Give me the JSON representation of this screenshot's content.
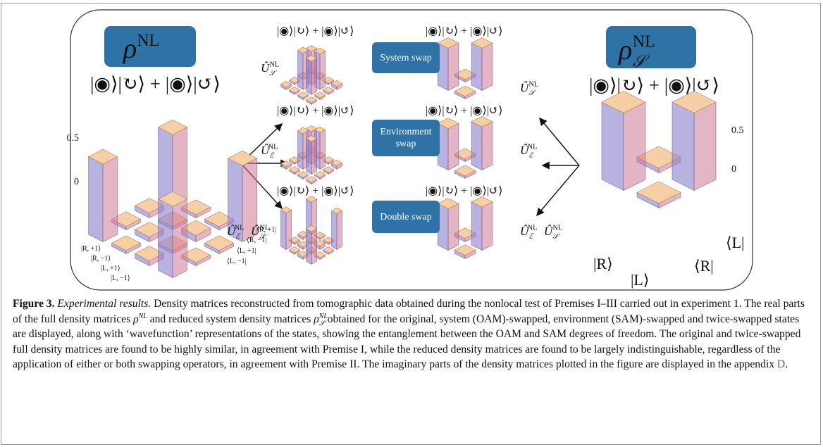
{
  "figure": {
    "main": {
      "symbol": {
        "base": "ρ",
        "sup": "NL"
      },
      "wavefunction": "|◉⟩|↻⟩ + |◉⟩|↺⟩",
      "matrix": [
        [
          0.48,
          0.02,
          0.03,
          0.44
        ],
        [
          0.02,
          0.03,
          0.02,
          0.02
        ],
        [
          0.03,
          0.02,
          0.04,
          0.02
        ],
        [
          0.44,
          0.02,
          0.02,
          0.47
        ]
      ],
      "ticks": [
        0.5,
        0
      ],
      "row_labels": [
        "|R, +1⟩",
        "|R, −1⟩",
        "|L, +1⟩",
        "|L, −1⟩"
      ],
      "col_labels": [
        "⟨R, +1|",
        "⟨R, −1|",
        "⟨L, +1|",
        "⟨L, −1|"
      ]
    },
    "swaps": [
      {
        "button": "System swap",
        "operator": [
          {
            "base": "Û",
            "sub": "𝒮",
            "sup": "NL"
          }
        ],
        "full": {
          "wavefunction": "|◉⟩|↻⟩ + |◉⟩|↺⟩",
          "matrix": [
            [
              0.03,
              0.02,
              0.02,
              0.02
            ],
            [
              0.02,
              0.47,
              0.43,
              0.02
            ],
            [
              0.02,
              0.43,
              0.46,
              0.02
            ],
            [
              0.02,
              0.02,
              0.02,
              0.04
            ]
          ]
        },
        "reduced": {
          "wavefunction": "|◉⟩|↻⟩ + |◉⟩|↺⟩",
          "matrix": [
            [
              0.5,
              0.03
            ],
            [
              0.03,
              0.5
            ]
          ]
        }
      },
      {
        "button": "Environment swap",
        "operator": [
          {
            "base": "Û",
            "sub": "ℰ",
            "sup": "NL"
          }
        ],
        "full": {
          "wavefunction": "|◉⟩|↻⟩ + |◉⟩|↺⟩",
          "matrix": [
            [
              0.03,
              0.02,
              0.02,
              0.02
            ],
            [
              0.02,
              0.46,
              0.42,
              0.02
            ],
            [
              0.02,
              0.42,
              0.47,
              0.02
            ],
            [
              0.02,
              0.02,
              0.02,
              0.04
            ]
          ]
        },
        "reduced": {
          "wavefunction": "|◉⟩|↻⟩ + |◉⟩|↺⟩",
          "matrix": [
            [
              0.49,
              0.03
            ],
            [
              0.03,
              0.51
            ]
          ]
        }
      },
      {
        "button": "Double swap",
        "operator": [
          {
            "base": "Û",
            "sub": "ℰ",
            "sup": "NL"
          },
          {
            "base": "Û",
            "sub": "𝒮",
            "sup": "NL"
          }
        ],
        "full": {
          "wavefunction": "|◉⟩|↻⟩ + |◉⟩|↺⟩",
          "matrix": [
            [
              0.47,
              0.02,
              0.03,
              0.42
            ],
            [
              0.02,
              0.03,
              0.02,
              0.02
            ],
            [
              0.03,
              0.02,
              0.04,
              0.02
            ],
            [
              0.42,
              0.02,
              0.02,
              0.46
            ]
          ]
        },
        "reduced": {
          "wavefunction": "|◉⟩|↻⟩ + |◉⟩|↺⟩",
          "matrix": [
            [
              0.49,
              0.04
            ],
            [
              0.04,
              0.51
            ]
          ]
        }
      }
    ],
    "reduced": {
      "symbol": {
        "base": "ρ",
        "sub": "𝒮",
        "sup": "NL"
      },
      "wavefunction": "|◉⟩|↻⟩ + |◉⟩|↺⟩",
      "matrix": [
        [
          0.5,
          0.03
        ],
        [
          0.03,
          0.5
        ]
      ],
      "ticks": [
        0.5,
        0
      ],
      "row_labels": [
        "|R⟩",
        "|L⟩"
      ],
      "col_labels": [
        "⟨R|",
        "⟨L|"
      ]
    }
  },
  "caption": {
    "label": "Figure 3.",
    "heading": "Experimental results.",
    "text": [
      "Density matrices reconstructed from tomographic data obtained during the nonlocal test of Premises I–III carried out in experiment 1. The real parts of the full density matrices",
      "and reduced system density matrices",
      "obtained for the original, system (OAM)-swapped, environment (SAM)-swapped and twice-swapped states are displayed, along with ‘wavefunction’ representations of the states, showing the entanglement between the OAM and SAM degrees of freedom. The original and twice-swapped full density matrices are found to be highly similar, in agreement with Premise I, while the reduced density matrices are found to be largely indistinguishable, regardless of the application of either or both swapping operators, in agreement with Premise II. The imaginary parts of the density matrices plotted in the figure are displayed in the appendix",
      "."
    ],
    "math": [
      {
        "base": "ρ",
        "sup": "NL"
      },
      {
        "base": "ρ",
        "sub": "𝒮",
        "sup": "NL"
      }
    ],
    "link": "D"
  }
}
